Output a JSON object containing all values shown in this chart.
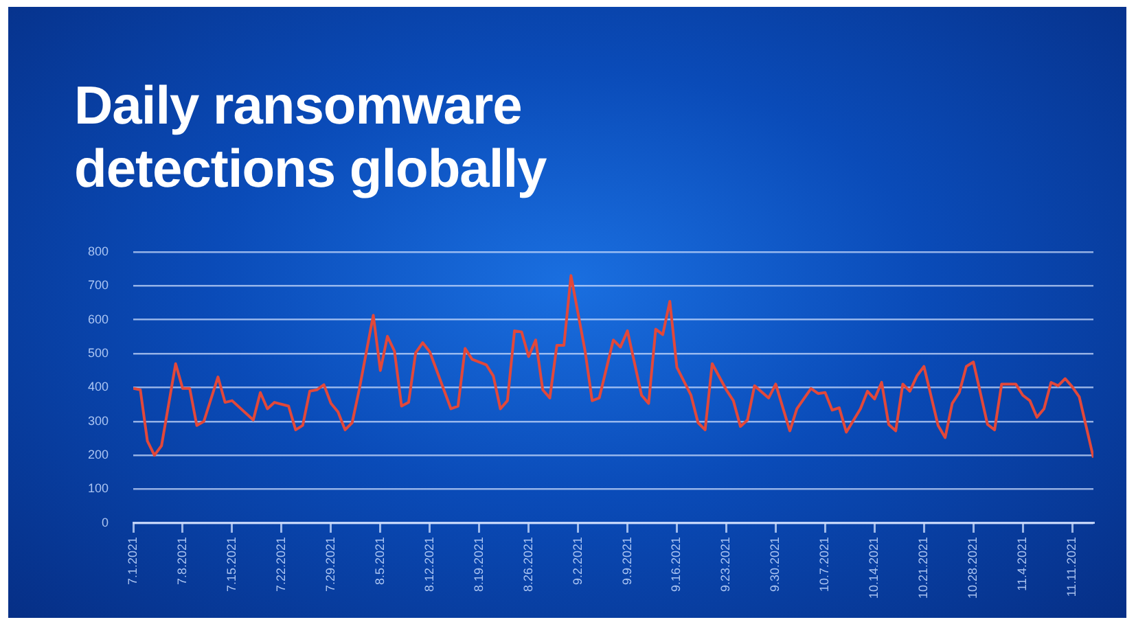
{
  "chart_data": {
    "type": "line",
    "title": "Daily ransomware detections globally",
    "color": "#e2483a",
    "marker": "none",
    "grid": "y",
    "x": [
      "2021-07-01",
      "2021-07-02",
      "2021-07-03",
      "2021-07-04",
      "2021-07-05",
      "2021-07-07",
      "2021-07-08",
      "2021-07-09",
      "2021-07-10",
      "2021-07-11",
      "2021-07-13",
      "2021-07-14",
      "2021-07-15",
      "2021-07-18",
      "2021-07-19",
      "2021-07-20",
      "2021-07-21",
      "2021-07-23",
      "2021-07-24",
      "2021-07-25",
      "2021-07-26",
      "2021-07-27",
      "2021-07-28",
      "2021-07-29",
      "2021-07-30",
      "2021-07-31",
      "2021-08-01",
      "2021-08-02",
      "2021-08-04",
      "2021-08-05",
      "2021-08-06",
      "2021-08-07",
      "2021-08-08",
      "2021-08-09",
      "2021-08-10",
      "2021-08-11",
      "2021-08-12",
      "2021-08-15",
      "2021-08-16",
      "2021-08-17",
      "2021-08-18",
      "2021-08-20",
      "2021-08-21",
      "2021-08-22",
      "2021-08-23",
      "2021-08-24",
      "2021-08-25",
      "2021-08-26",
      "2021-08-27",
      "2021-08-28",
      "2021-08-29",
      "2021-08-30",
      "2021-08-31",
      "2021-09-01",
      "2021-09-03",
      "2021-09-04",
      "2021-09-05",
      "2021-09-07",
      "2021-09-08",
      "2021-09-09",
      "2021-09-11",
      "2021-09-12",
      "2021-09-13",
      "2021-09-14",
      "2021-09-15",
      "2021-09-16",
      "2021-09-18",
      "2021-09-19",
      "2021-09-20",
      "2021-09-21",
      "2021-09-23",
      "2021-09-24",
      "2021-09-25",
      "2021-09-26",
      "2021-09-27",
      "2021-09-29",
      "2021-09-30",
      "2021-10-02",
      "2021-10-03",
      "2021-10-05",
      "2021-10-06",
      "2021-10-07",
      "2021-10-08",
      "2021-10-09",
      "2021-10-10",
      "2021-10-12",
      "2021-10-13",
      "2021-10-14",
      "2021-10-15",
      "2021-10-16",
      "2021-10-17",
      "2021-10-18",
      "2021-10-19",
      "2021-10-20",
      "2021-10-21",
      "2021-10-23",
      "2021-10-24",
      "2021-10-25",
      "2021-10-26",
      "2021-10-27",
      "2021-10-28",
      "2021-10-30",
      "2021-10-31",
      "2021-11-01",
      "2021-11-03",
      "2021-11-04",
      "2021-11-05",
      "2021-11-06",
      "2021-11-07",
      "2021-11-08",
      "2021-11-09",
      "2021-11-10",
      "2021-11-11",
      "2021-11-12",
      "2021-11-14"
    ],
    "values": [
      397,
      393,
      242,
      200,
      228,
      470,
      397,
      397,
      288,
      300,
      431,
      356,
      361,
      304,
      385,
      337,
      356,
      345,
      275,
      288,
      389,
      393,
      408,
      353,
      328,
      275,
      296,
      393,
      613,
      450,
      551,
      507,
      345,
      356,
      502,
      532,
      505,
      337,
      345,
      515,
      483,
      467,
      434,
      337,
      361,
      567,
      564,
      491,
      540,
      393,
      369,
      524,
      524,
      730,
      507,
      361,
      369,
      540,
      519,
      567,
      377,
      353,
      572,
      556,
      654,
      459,
      377,
      296,
      275,
      470,
      393,
      361,
      285,
      304,
      405,
      369,
      410,
      272,
      337,
      397,
      382,
      385,
      333,
      340,
      268,
      337,
      389,
      366,
      415,
      291,
      272,
      410,
      389,
      434,
      462,
      288,
      252,
      353,
      385,
      462,
      475,
      291,
      275,
      410,
      410,
      377,
      361,
      312,
      337,
      415,
      405,
      426,
      402,
      372,
      193
    ],
    "xlim": [
      "2021-07-01",
      "2021-11-14"
    ],
    "xticks": [
      {
        "value": "2021-07-01",
        "label": "7.1.2021"
      },
      {
        "value": "2021-07-08",
        "label": "7.8.2021"
      },
      {
        "value": "2021-07-15",
        "label": "7.15.2021"
      },
      {
        "value": "2021-07-22",
        "label": "7.22.2021"
      },
      {
        "value": "2021-07-29",
        "label": "7.29.2021"
      },
      {
        "value": "2021-08-05",
        "label": "8.5.2021"
      },
      {
        "value": "2021-08-12",
        "label": "8.12.2021"
      },
      {
        "value": "2021-08-19",
        "label": "8.19.2021"
      },
      {
        "value": "2021-08-26",
        "label": "8.26.2021"
      },
      {
        "value": "2021-09-02",
        "label": "9.2.2021"
      },
      {
        "value": "2021-09-09",
        "label": "9.9.2021"
      },
      {
        "value": "2021-09-16",
        "label": "9.16.2021"
      },
      {
        "value": "2021-09-23",
        "label": "9.23.2021"
      },
      {
        "value": "2021-09-30",
        "label": "9.30.2021"
      },
      {
        "value": "2021-10-07",
        "label": "10.7.2021"
      },
      {
        "value": "2021-10-14",
        "label": "10.14.2021"
      },
      {
        "value": "2021-10-21",
        "label": "10.21.2021"
      },
      {
        "value": "2021-10-28",
        "label": "10.28.2021"
      },
      {
        "value": "2021-11-04",
        "label": "11.4.2021"
      },
      {
        "value": "2021-11-11",
        "label": "11.11.2021"
      }
    ],
    "ylim": [
      0,
      800
    ],
    "yticks": [
      0,
      100,
      200,
      300,
      400,
      500,
      600,
      700,
      800
    ]
  }
}
